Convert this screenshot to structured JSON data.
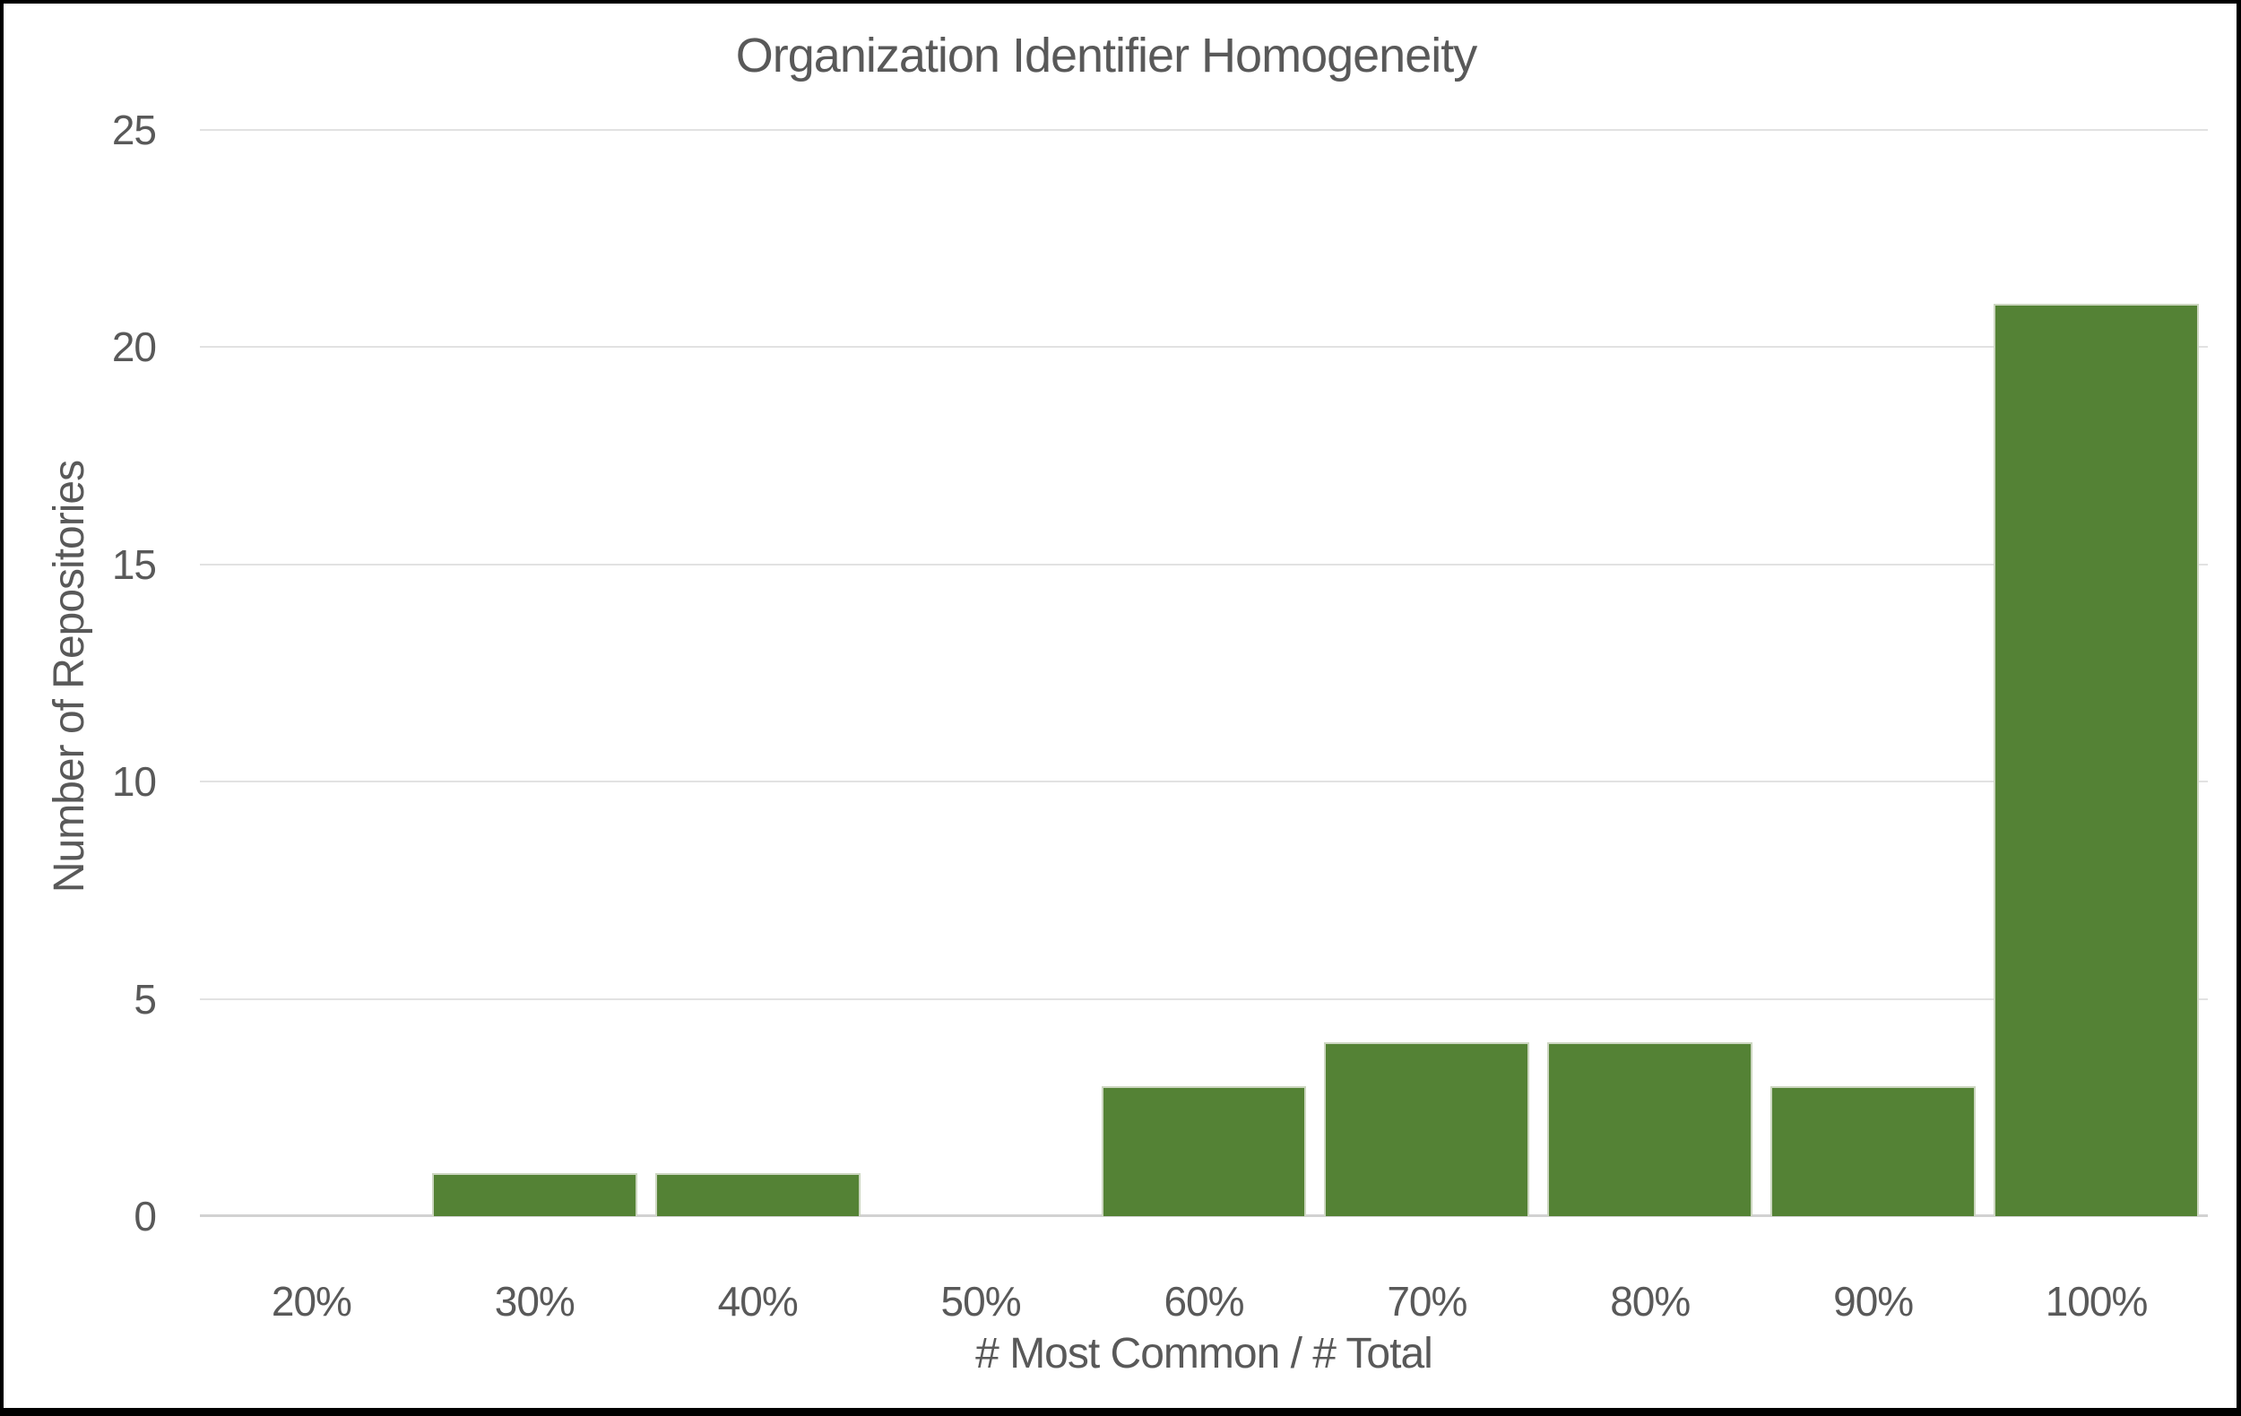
{
  "chart_data": {
    "type": "bar",
    "title": "Organization Identifier Homogeneity",
    "xlabel": "# Most Common / # Total",
    "ylabel": "Number of Repositories",
    "categories": [
      "20%",
      "30%",
      "40%",
      "50%",
      "60%",
      "70%",
      "80%",
      "90%",
      "100%"
    ],
    "values": [
      0,
      1,
      1,
      0,
      3,
      4,
      4,
      3,
      21
    ],
    "ylim": [
      0,
      25
    ],
    "yticks": [
      0,
      5,
      10,
      15,
      20,
      25
    ],
    "grid": "horizontal",
    "legend": "none",
    "colors": {
      "bar_fill": "#548235",
      "bar_border": "#ccd6c0",
      "text": "#595959",
      "gridline": "#e2e2e2",
      "axis_line": "#d2d2d2",
      "background": "#ffffff",
      "frame_border": "#000000"
    }
  }
}
